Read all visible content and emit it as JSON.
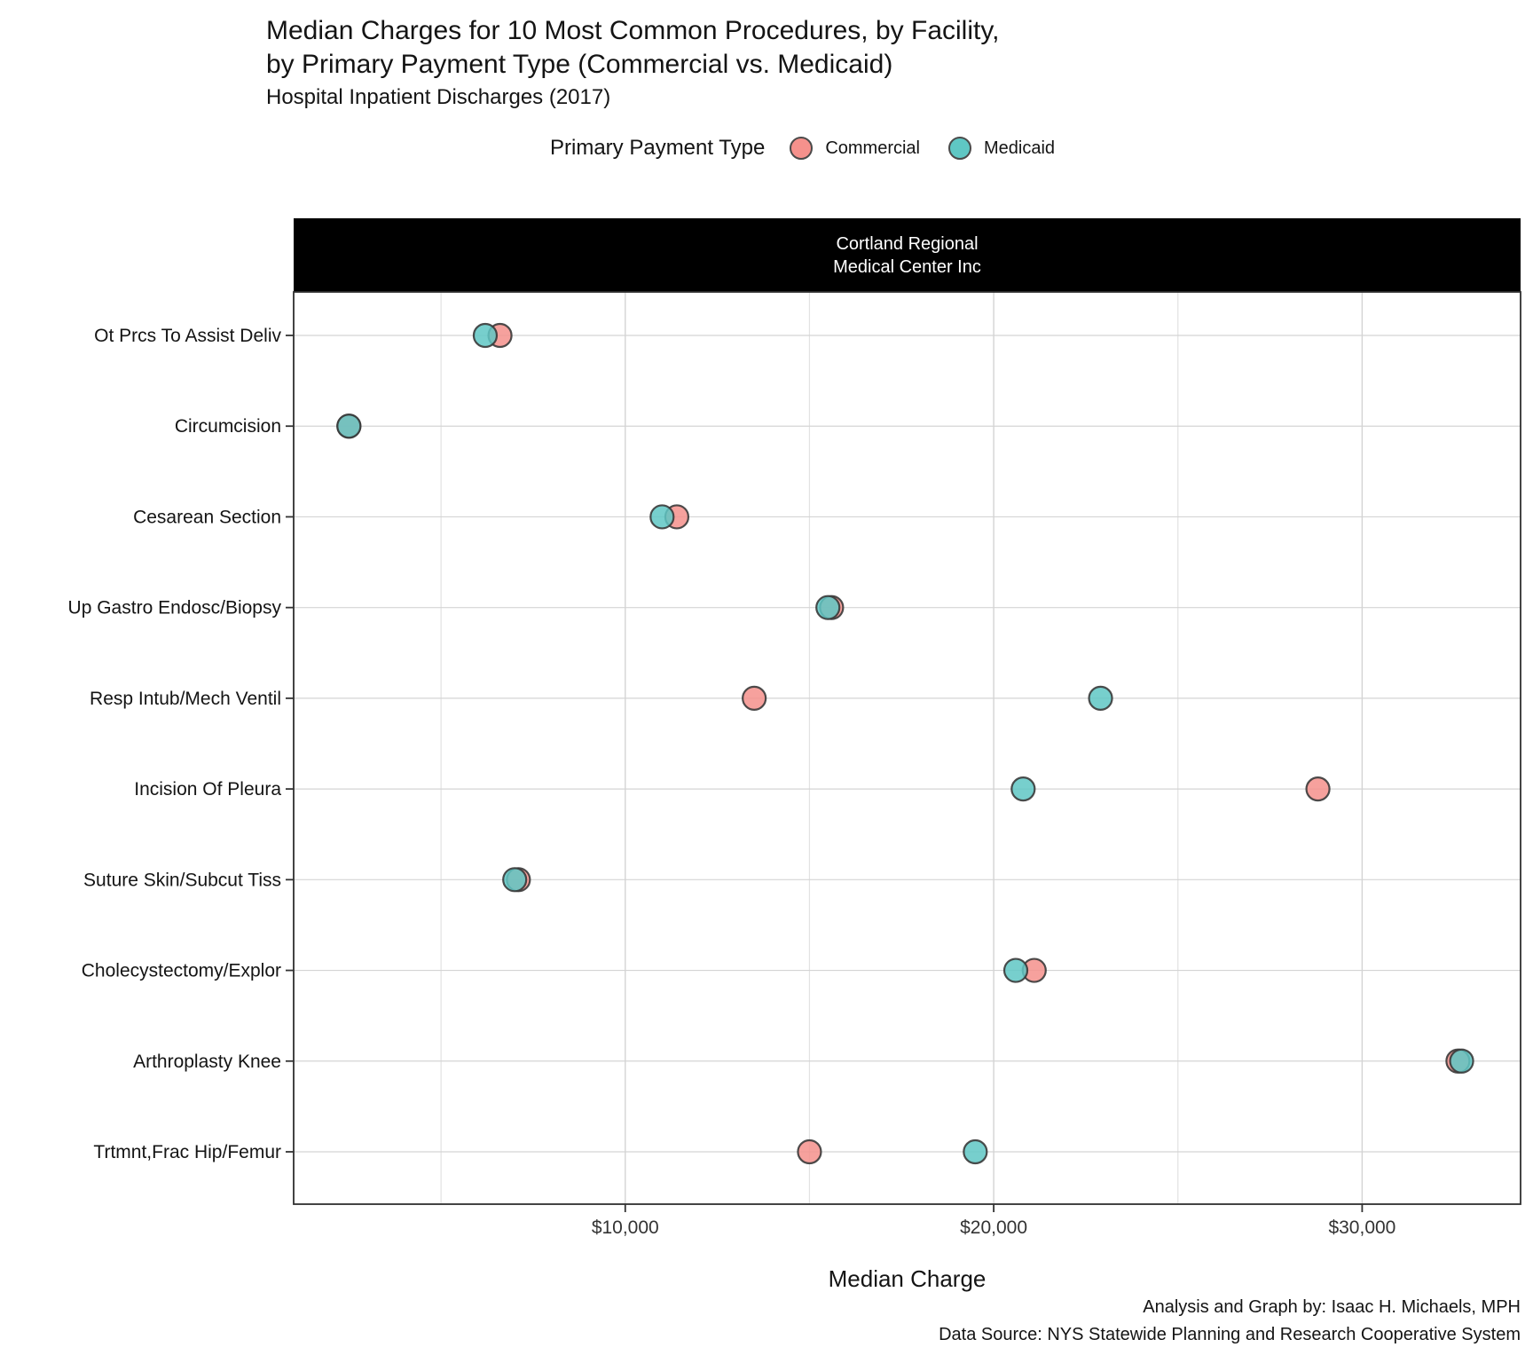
{
  "header": {
    "title_line1": "Median Charges for 10 Most Common Procedures, by Facility,",
    "title_line2": "by Primary Payment Type (Commercial vs. Medicaid)",
    "subtitle": "Hospital Inpatient Discharges (2017)"
  },
  "legend": {
    "title": "Primary Payment Type",
    "items": [
      {
        "label": "Commercial",
        "color": "#F5918C"
      },
      {
        "label": "Medicaid",
        "color": "#5FC7C4"
      }
    ]
  },
  "facet_strip": {
    "line1": "Cortland Regional",
    "line2": "Medical Center Inc"
  },
  "axis": {
    "x_title": "Median Charge"
  },
  "footer": {
    "line1": "Analysis and Graph by: Isaac H. Michaels, MPH",
    "line2": "Data Source: NYS Statewide Planning and Research Cooperative System"
  },
  "chart_data": {
    "type": "scatter",
    "facet_label": "Cortland Regional Medical Center Inc",
    "categories": [
      "Ot Prcs To Assist Deliv",
      "Circumcision",
      "Cesarean Section",
      "Up Gastro Endosc/Biopsy",
      "Resp Intub/Mech Ventil",
      "Incision Of Pleura",
      "Suture Skin/Subcut Tiss",
      "Cholecystectomy/Explor",
      "Arthroplasty Knee",
      "Trtmnt,Frac Hip/Femur"
    ],
    "series": [
      {
        "name": "Commercial",
        "color": "#F5918C",
        "values": [
          6600,
          2500,
          11400,
          15600,
          13500,
          28800,
          7100,
          21100,
          32600,
          15000
        ]
      },
      {
        "name": "Medicaid",
        "color": "#5FC7C4",
        "values": [
          6200,
          2500,
          11000,
          15500,
          22900,
          20800,
          7000,
          20600,
          32700,
          19500
        ]
      }
    ],
    "xlabel": "Median Charge",
    "ylabel": "",
    "xlim": [
      1000,
      34300
    ],
    "x_major_ticks": [
      {
        "value": 10000,
        "label": "$10,000"
      },
      {
        "value": 20000,
        "label": "$20,000"
      },
      {
        "value": 30000,
        "label": "$30,000"
      }
    ],
    "x_minor_ticks": [
      5000,
      15000,
      25000
    ],
    "grid": "on",
    "legend_position": "top",
    "marker": {
      "radius": 13,
      "stroke": "#3A3A3A",
      "fill_opacity": 0.85
    },
    "colors": {
      "grid_major": "#D4D4D4",
      "grid_minor": "#E2E2E2",
      "panel_border": "#2F2F2F",
      "strip_bg": "#000000",
      "strip_text": "#ffffff"
    }
  }
}
